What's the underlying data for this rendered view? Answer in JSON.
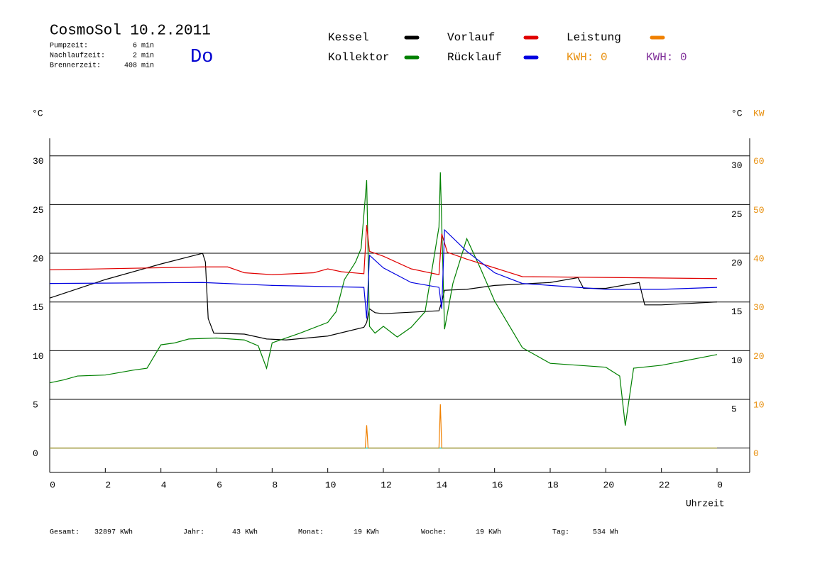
{
  "header": {
    "title": "CosmoSol 10.2.2011",
    "day": "Do",
    "stats": [
      {
        "label": "Pumpzeit:",
        "value": "6 min"
      },
      {
        "label": "Nachlaufzeit:",
        "value": "2 min"
      },
      {
        "label": "Brennerzeit:",
        "value": "408 min"
      }
    ],
    "kwh_labels": [
      {
        "text": "KWH: 0",
        "color": "#e8900f"
      },
      {
        "text": "KWH: 0",
        "color": "#80309a"
      }
    ]
  },
  "chart_data": {
    "type": "line",
    "y_unit_left": "°C",
    "y_unit_right": "°C",
    "y2_unit": "KW",
    "xlabel": "Uhrzeit",
    "xlim": [
      0,
      24
    ],
    "xticks": [
      0,
      2,
      4,
      6,
      8,
      10,
      12,
      14,
      16,
      18,
      20,
      22,
      {
        "value": 24,
        "label": "0"
      }
    ],
    "ylim": [
      -2.5,
      31.8
    ],
    "yticks": [
      0,
      5,
      10,
      15,
      20,
      25,
      30
    ],
    "yticks_right": [
      5,
      10,
      15,
      20,
      25,
      30
    ],
    "y2lim": [
      -5,
      63.6
    ],
    "y2ticks": [
      0,
      10,
      20,
      30,
      40,
      50,
      60
    ],
    "grid": true,
    "series": [
      {
        "name": "Kessel",
        "color": "#000000",
        "x": [
          0,
          2,
          4,
          5.5,
          5.6,
          5.7,
          5.9,
          7,
          7.8,
          8.5,
          10,
          11.3,
          11.4,
          11.5,
          11.7,
          12,
          14,
          14.1,
          14.2,
          15,
          16,
          18,
          19,
          19.2,
          20,
          21.2,
          21.4,
          22,
          24
        ],
        "values": [
          15.4,
          17.3,
          18.9,
          20,
          19.1,
          13.3,
          11.8,
          11.7,
          11.2,
          11.1,
          11.5,
          12.4,
          12.9,
          14.3,
          13.9,
          13.8,
          14.1,
          15,
          16.2,
          16.3,
          16.7,
          17,
          17.5,
          16.4,
          16.4,
          17,
          14.7,
          14.7,
          15
        ]
      },
      {
        "name": "Kollektor",
        "color": "#008000",
        "x": [
          0,
          0.5,
          1,
          2,
          3,
          3.5,
          4,
          4.5,
          5,
          6,
          7,
          7.5,
          7.8,
          8,
          9,
          10,
          10.3,
          10.6,
          11,
          11.2,
          11.4,
          11.5,
          11.7,
          12,
          12.5,
          13,
          13.5,
          14,
          14.05,
          14.2,
          14.5,
          15,
          15.5,
          16,
          17,
          18,
          20,
          20.5,
          20.7,
          21,
          22,
          24
        ],
        "values": [
          6.7,
          7,
          7.4,
          7.5,
          8,
          8.2,
          10.6,
          10.8,
          11.2,
          11.3,
          11.1,
          10.5,
          8.2,
          10.8,
          11.8,
          12.9,
          14,
          17.3,
          19.1,
          20.5,
          27.5,
          12.5,
          11.8,
          12.5,
          11.4,
          12.4,
          14,
          22.7,
          28.3,
          12.2,
          16.9,
          21.5,
          18.4,
          15.1,
          10.3,
          8.7,
          8.3,
          7.4,
          2.3,
          8.2,
          8.5,
          9.6
        ]
      },
      {
        "name": "Vorlauf",
        "color": "#e00000",
        "x": [
          0,
          5.5,
          6.4,
          7,
          8,
          9.5,
          10,
          10.5,
          11.3,
          11.4,
          11.5,
          12,
          13,
          14,
          14.1,
          14.3,
          15,
          16,
          17,
          24
        ],
        "values": [
          18.3,
          18.6,
          18.6,
          18,
          17.8,
          18,
          18.4,
          18.1,
          17.9,
          22.9,
          20.2,
          19.7,
          18.4,
          17.8,
          22,
          20.1,
          19.4,
          18.5,
          17.6,
          17.4
        ]
      },
      {
        "name": "Rücklauf",
        "color": "#0000e0",
        "x": [
          0,
          5.5,
          8,
          11.3,
          11.4,
          11.5,
          12,
          13,
          14,
          14.1,
          14.2,
          15,
          16,
          17,
          18,
          19,
          20,
          22,
          24
        ],
        "values": [
          16.9,
          17,
          16.7,
          16.5,
          13.3,
          19.8,
          18.5,
          17,
          16.5,
          14.3,
          22.4,
          20.2,
          18,
          16.9,
          16.7,
          16.5,
          16.3,
          16.3,
          16.5
        ]
      },
      {
        "name": "Leistung",
        "color": "#f08000",
        "axis": "y2",
        "x": [
          0,
          11.35,
          11.4,
          11.45,
          14,
          14.05,
          14.1,
          24
        ],
        "values": [
          0,
          0,
          4.7,
          0,
          0,
          9,
          0,
          0
        ]
      }
    ]
  },
  "footer": [
    {
      "label": "Gesamt:",
      "value": "32897 KWh"
    },
    {
      "label": "Jahr:",
      "value": "43 KWh"
    },
    {
      "label": "Monat:",
      "value": "19 KWh"
    },
    {
      "label": "Woche:",
      "value": "19 KWh"
    },
    {
      "label": "Tag:",
      "value": "534 Wh"
    }
  ]
}
